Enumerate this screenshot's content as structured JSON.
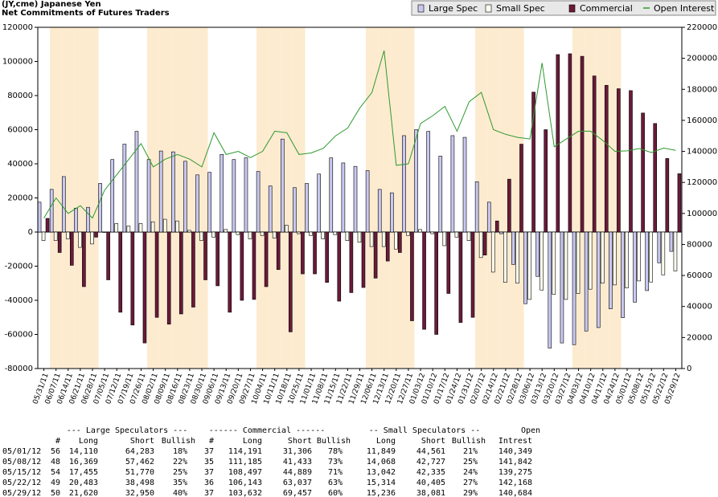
{
  "chart_data": {
    "type": "bar",
    "title": "(JY,cme) Japanese Yen",
    "subtitle": "Net Commitments of Futures Traders",
    "categories": [
      "05/31/11",
      "06/07/11",
      "06/14/11",
      "06/21/11",
      "06/28/11",
      "07/05/11",
      "07/12/11",
      "07/19/11",
      "07/26/11",
      "08/02/11",
      "08/09/11",
      "08/16/11",
      "08/23/11",
      "08/30/11",
      "09/06/11",
      "09/13/11",
      "09/20/11",
      "09/27/11",
      "10/04/11",
      "10/11/11",
      "10/18/11",
      "10/25/11",
      "11/01/11",
      "11/08/11",
      "11/15/11",
      "11/22/11",
      "11/29/11",
      "12/06/11",
      "12/13/11",
      "12/20/11",
      "12/27/11",
      "01/03/12",
      "01/10/12",
      "01/17/12",
      "01/24/12",
      "01/31/12",
      "02/07/12",
      "02/14/12",
      "02/21/12",
      "02/28/12",
      "03/06/12",
      "03/13/12",
      "03/20/12",
      "03/27/12",
      "04/03/12",
      "04/10/12",
      "04/17/12",
      "04/24/12",
      "05/01/12",
      "05/08/12",
      "05/15/12",
      "05/22/12",
      "05/29/12"
    ],
    "series": [
      {
        "name": "Large Spec",
        "color": "#c8c8f0",
        "values": [
          17500,
          25000,
          32500,
          14000,
          14500,
          28500,
          42500,
          51500,
          59000,
          42500,
          47500,
          47000,
          41500,
          33500,
          35000,
          45500,
          42500,
          43500,
          35500,
          27000,
          54500,
          26000,
          28500,
          34000,
          43500,
          40500,
          38500,
          36000,
          25000,
          23000,
          56500,
          60000,
          59000,
          44500,
          56500,
          55500,
          29500,
          17500,
          -1000,
          -19000,
          -42000,
          -26000,
          -68000,
          -65000,
          -66000,
          -58000,
          -56000,
          -45000,
          -50173,
          -41093,
          -34315,
          -18015,
          -11330
        ]
      },
      {
        "name": "Small Spec",
        "color": "#fffff0",
        "values": [
          -5000,
          -5000,
          -4000,
          -9000,
          -7000,
          0,
          5000,
          3500,
          5000,
          6000,
          7500,
          6500,
          1000,
          -5000,
          -3000,
          1500,
          -1500,
          -4000,
          -2000,
          -3500,
          4000,
          -1000,
          -2000,
          -4000,
          -1500,
          -5000,
          -6000,
          -8500,
          -8500,
          -10000,
          -2000,
          1500,
          -1000,
          -8000,
          -3000,
          -5000,
          -15000,
          -23500,
          -29500,
          -30000,
          -39500,
          -34000,
          -36500,
          -39500,
          -36000,
          -33500,
          -30000,
          -31000,
          -32712,
          -28659,
          -29293,
          -25091,
          -22845
        ]
      },
      {
        "name": "Commercial",
        "color": "#6b1a3a",
        "values": [
          8000,
          -12000,
          -19500,
          -32000,
          -3000,
          -28000,
          -47000,
          -54500,
          -65000,
          -50000,
          -54000,
          -48000,
          -44000,
          -28000,
          -31500,
          -47000,
          -40000,
          -39500,
          -32000,
          -22000,
          -58500,
          -24500,
          -24500,
          -29500,
          -40500,
          -35500,
          -32500,
          -27000,
          -17000,
          -12000,
          -52000,
          -57000,
          -60000,
          -36000,
          -53000,
          -50000,
          -13500,
          6500,
          31000,
          51500,
          82000,
          60000,
          104000,
          104500,
          103000,
          91500,
          86000,
          84000,
          82885,
          69752,
          63608,
          43106,
          34175
        ]
      },
      {
        "name": "Open Interest",
        "type": "line",
        "axis": "y2",
        "color": "#2e9a2e",
        "values": [
          97000,
          110000,
          100000,
          105000,
          97000,
          115000,
          125000,
          135000,
          145000,
          130000,
          135000,
          138000,
          135000,
          130000,
          152000,
          138000,
          140000,
          136000,
          140000,
          153000,
          152000,
          138000,
          139000,
          142000,
          150000,
          155000,
          168000,
          178000,
          205000,
          131000,
          132000,
          158000,
          163000,
          169000,
          153000,
          172000,
          178000,
          154000,
          151000,
          149000,
          148000,
          197000,
          143000,
          148000,
          153000,
          153000,
          147000,
          140000,
          140349,
          141842,
          139275,
          142168,
          140684
        ]
      }
    ],
    "ylim": [
      -80000,
      120000
    ],
    "yticks": [
      -80000,
      -60000,
      -40000,
      -20000,
      0,
      20000,
      40000,
      60000,
      80000,
      100000,
      120000
    ],
    "y2lim": [
      0,
      220000
    ],
    "y2ticks": [
      0,
      20000,
      40000,
      60000,
      80000,
      100000,
      120000,
      140000,
      160000,
      180000,
      200000,
      220000
    ],
    "legend": "top-right"
  },
  "table": {
    "groups": [
      "--- Large Speculators ---",
      "------ Commercial ------",
      "-- Small Speculators --",
      "Open"
    ],
    "columns": [
      "#",
      "Long",
      "Short",
      "Bullish",
      "#",
      "Long",
      "Short",
      "Bullish",
      "Long",
      "Short",
      "Bullish",
      "Intrest"
    ],
    "rows": [
      [
        "05/01/12",
        "56",
        "14,110",
        "64,283",
        "18%",
        "37",
        "114,191",
        "31,306",
        "78%",
        "11,849",
        "44,561",
        "21%",
        "140,349"
      ],
      [
        "05/08/12",
        "48",
        "16,369",
        "57,462",
        "22%",
        "35",
        "111,185",
        "41,433",
        "73%",
        "14,068",
        "42,727",
        "25%",
        "141,842"
      ],
      [
        "05/15/12",
        "54",
        "17,455",
        "51,770",
        "25%",
        "37",
        "108,497",
        "44,889",
        "71%",
        "13,042",
        "42,335",
        "24%",
        "139,275"
      ],
      [
        "05/22/12",
        "49",
        "20,483",
        "38,498",
        "35%",
        "36",
        "106,143",
        "63,037",
        "63%",
        "15,314",
        "40,405",
        "27%",
        "142,168"
      ],
      [
        "05/29/12",
        "50",
        "21,620",
        "32,950",
        "40%",
        "37",
        "103,632",
        "69,457",
        "60%",
        "15,236",
        "38,081",
        "29%",
        "140,684"
      ]
    ]
  }
}
